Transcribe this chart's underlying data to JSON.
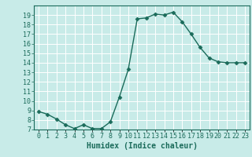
{
  "x": [
    0,
    1,
    2,
    3,
    4,
    5,
    6,
    7,
    8,
    9,
    10,
    11,
    12,
    13,
    14,
    15,
    16,
    17,
    18,
    19,
    20,
    21,
    22,
    23
  ],
  "y": [
    8.9,
    8.6,
    8.1,
    7.5,
    7.1,
    7.5,
    7.1,
    7.1,
    7.8,
    10.4,
    13.3,
    18.6,
    18.7,
    19.1,
    19.0,
    19.3,
    18.3,
    17.0,
    15.6,
    14.5,
    14.1,
    14.0,
    14.0,
    14.0
  ],
  "line_color": "#1a6b5a",
  "marker": "D",
  "marker_size": 2.5,
  "bg_color": "#c8ebe8",
  "grid_color": "#b0d8d4",
  "tick_color": "#1a6b5a",
  "xlabel": "Humidex (Indice chaleur)",
  "ylabel": "",
  "title": "",
  "xlim": [
    -0.5,
    23.5
  ],
  "ylim": [
    7,
    20
  ],
  "yticks": [
    7,
    8,
    9,
    10,
    11,
    12,
    13,
    14,
    15,
    16,
    17,
    18,
    19
  ],
  "xtick_labels": [
    "0",
    "1",
    "2",
    "3",
    "4",
    "5",
    "6",
    "7",
    "8",
    "9",
    "10",
    "11",
    "12",
    "13",
    "14",
    "15",
    "16",
    "17",
    "18",
    "19",
    "20",
    "21",
    "22",
    "23"
  ],
  "tick_fontsize": 6,
  "xlabel_fontsize": 7,
  "line_width": 1.0
}
